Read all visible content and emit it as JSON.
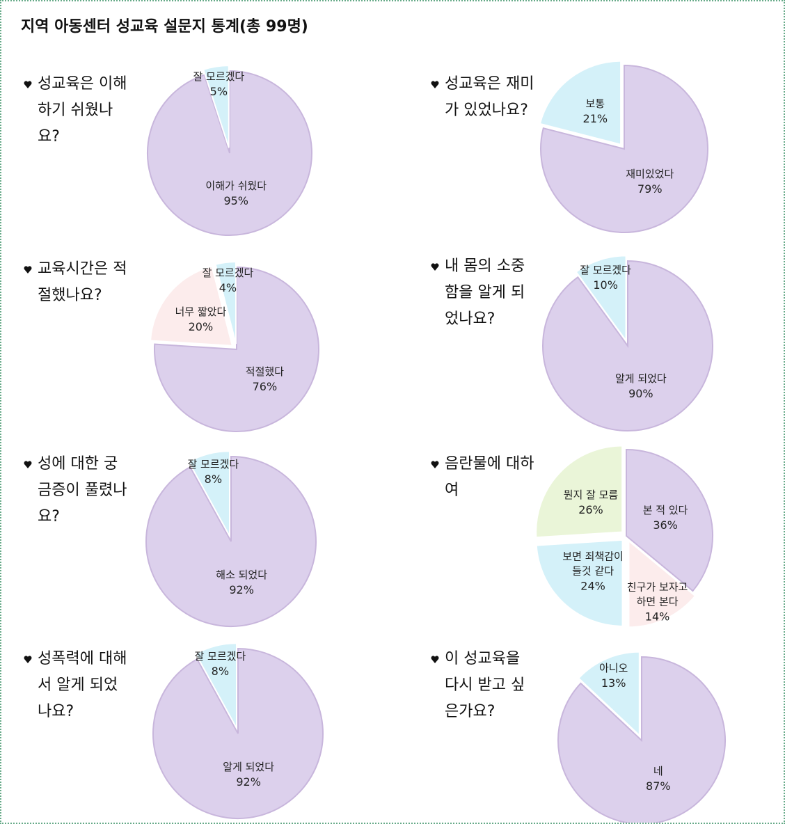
{
  "title": "지역 아동센터 성교육 설문지 통계(총 99명)",
  "chart_data": [
    {
      "type": "pie",
      "title": "성교육은 이해하기 쉬웠나요?",
      "categories": [
        "이해가 쉬웠다",
        "잘 모르겠다"
      ],
      "values": [
        95,
        5
      ],
      "value_labels": [
        "95%",
        "5%"
      ],
      "colors": [
        "#dcd0ec",
        "#d4f1f9"
      ]
    },
    {
      "type": "pie",
      "title": "성교육은 재미가 있었나요?",
      "categories": [
        "재미있었다",
        "보통"
      ],
      "values": [
        79,
        21
      ],
      "value_labels": [
        "79%",
        "21%"
      ],
      "colors": [
        "#dcd0ec",
        "#d4f1f9"
      ]
    },
    {
      "type": "pie",
      "title": "교육시간은 적절했나요?",
      "categories": [
        "적절했다",
        "너무 짧았다",
        "잘 모르겠다"
      ],
      "values": [
        76,
        20,
        4
      ],
      "value_labels": [
        "76%",
        "20%",
        "4%"
      ],
      "colors": [
        "#dcd0ec",
        "#fcecec",
        "#d4f1f9"
      ]
    },
    {
      "type": "pie",
      "title": "내 몸의 소중함을 알게 되었나요?",
      "categories": [
        "알게 되었다",
        "잘 모르겠다"
      ],
      "values": [
        90,
        10
      ],
      "value_labels": [
        "90%",
        "10%"
      ],
      "colors": [
        "#dcd0ec",
        "#d4f1f9"
      ]
    },
    {
      "type": "pie",
      "title": "성에 대한 궁금증이 풀렸나요?",
      "categories": [
        "해소 되었다",
        "잘 모르겠다"
      ],
      "values": [
        92,
        8
      ],
      "value_labels": [
        "92%",
        "8%"
      ],
      "colors": [
        "#dcd0ec",
        "#d4f1f9"
      ]
    },
    {
      "type": "pie",
      "title": "음란물에 대하여",
      "categories": [
        "본 적 있다",
        "친구가 보자고하면 본다",
        "보면 죄책감이 들것 같다",
        "뭔지 잘 모름"
      ],
      "values": [
        36,
        14,
        24,
        26
      ],
      "value_labels": [
        "36%",
        "14%",
        "24%",
        "26%"
      ],
      "colors": [
        "#dcd0ec",
        "#fcecec",
        "#d4f1f9",
        "#eaf5d8"
      ]
    },
    {
      "type": "pie",
      "title": "성폭력에 대해서 알게 되었나요?",
      "categories": [
        "알게 되었다",
        "잘 모르겠다"
      ],
      "values": [
        92,
        8
      ],
      "value_labels": [
        "92%",
        "8%"
      ],
      "colors": [
        "#dcd0ec",
        "#d4f1f9"
      ]
    },
    {
      "type": "pie",
      "title": "이 성교육을 다시 받고 싶은가요?",
      "categories": [
        "네",
        "아니오"
      ],
      "values": [
        87,
        13
      ],
      "value_labels": [
        "87%",
        "13%"
      ],
      "colors": [
        "#dcd0ec",
        "#d4f1f9"
      ]
    }
  ]
}
